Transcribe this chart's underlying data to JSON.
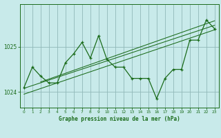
{
  "title": "Graphe pression niveau de la mer (hPa)",
  "bg_color": "#c8eaea",
  "plot_bg_color": "#c8eaea",
  "grid_color": "#90b8b8",
  "line_color": "#1a6b1a",
  "xlim": [
    -0.5,
    23.5
  ],
  "ylim": [
    1023.65,
    1025.95
  ],
  "yticks": [
    1024,
    1025
  ],
  "xticks": [
    0,
    1,
    2,
    3,
    4,
    5,
    6,
    7,
    8,
    9,
    10,
    11,
    12,
    13,
    14,
    15,
    16,
    17,
    18,
    19,
    20,
    21,
    22,
    23
  ],
  "main_line": [
    [
      0,
      1024.1
    ],
    [
      1,
      1024.55
    ],
    [
      2,
      1024.35
    ],
    [
      3,
      1024.2
    ],
    [
      4,
      1024.2
    ],
    [
      5,
      1024.65
    ],
    [
      6,
      1024.85
    ],
    [
      7,
      1025.1
    ],
    [
      8,
      1024.75
    ],
    [
      9,
      1025.25
    ],
    [
      10,
      1024.72
    ],
    [
      11,
      1024.55
    ],
    [
      12,
      1024.55
    ],
    [
      13,
      1024.3
    ],
    [
      14,
      1024.3
    ],
    [
      15,
      1024.3
    ],
    [
      16,
      1023.85
    ],
    [
      17,
      1024.3
    ],
    [
      18,
      1024.5
    ],
    [
      19,
      1024.5
    ],
    [
      20,
      1025.15
    ],
    [
      21,
      1025.15
    ],
    [
      22,
      1025.6
    ],
    [
      23,
      1025.4
    ]
  ],
  "trend_line1": [
    [
      0,
      1023.95
    ],
    [
      23,
      1025.38
    ]
  ],
  "trend_line2": [
    [
      0,
      1024.08
    ],
    [
      23,
      1025.48
    ]
  ],
  "trend_line3": [
    [
      2,
      1024.22
    ],
    [
      23,
      1025.58
    ]
  ]
}
